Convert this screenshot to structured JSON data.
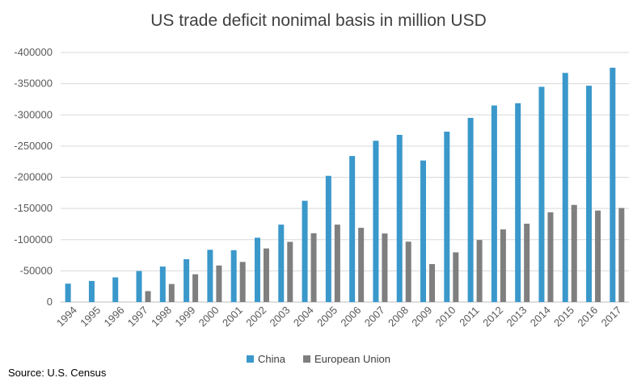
{
  "chart_data": {
    "type": "bar",
    "title": "US trade deficit nonimal basis in million USD",
    "categories": [
      "1994",
      "1995",
      "1996",
      "1997",
      "1998",
      "1999",
      "2000",
      "2001",
      "2002",
      "2003",
      "2004",
      "2005",
      "2006",
      "2007",
      "2008",
      "2009",
      "2010",
      "2011",
      "2012",
      "2013",
      "2014",
      "2015",
      "2016",
      "2017"
    ],
    "series": [
      {
        "name": "China",
        "color": "#3a98cb",
        "values": [
          -29500,
          -33800,
          -39500,
          -49700,
          -56900,
          -68700,
          -83800,
          -83100,
          -103100,
          -124100,
          -162300,
          -202300,
          -234100,
          -258500,
          -268000,
          -226900,
          -273100,
          -295200,
          -315100,
          -318700,
          -345000,
          -367300,
          -346800,
          -375600
        ]
      },
      {
        "name": "European Union",
        "color": "#7f7f7f",
        "values": [
          0,
          0,
          0,
          -17500,
          -28900,
          -44500,
          -58600,
          -64300,
          -85900,
          -96500,
          -110300,
          -124100,
          -119000,
          -109900,
          -96800,
          -60900,
          -79700,
          -99500,
          -116400,
          -125600,
          -143900,
          -155700,
          -146700,
          -150800
        ]
      }
    ],
    "ylim": [
      0,
      -400000
    ],
    "yticks": [
      0,
      -50000,
      -100000,
      -150000,
      -200000,
      -250000,
      -300000,
      -350000,
      -400000
    ],
    "ytick_labels": [
      "0",
      "-50000",
      "-100000",
      "-150000",
      "-200000",
      "-250000",
      "-300000",
      "-350000",
      "-400000"
    ],
    "xlabel": "",
    "ylabel": "",
    "grid": true,
    "legend_position": "bottom"
  },
  "source": "Source: U.S. Census"
}
